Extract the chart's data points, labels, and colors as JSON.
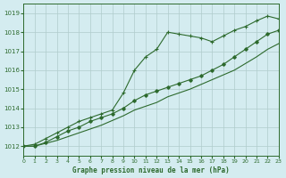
{
  "title": "Graphe pression niveau de la mer (hPa)",
  "bg_color": "#d4ecf0",
  "grid_color": "#b0cccc",
  "line_color": "#2d6a2d",
  "xmin": 0,
  "xmax": 23,
  "ymin": 1011.5,
  "ymax": 1019.5,
  "yticks": [
    1012,
    1013,
    1014,
    1015,
    1016,
    1017,
    1018,
    1019
  ],
  "xticks": [
    0,
    1,
    2,
    3,
    4,
    5,
    6,
    7,
    8,
    9,
    10,
    11,
    12,
    13,
    14,
    15,
    16,
    17,
    18,
    19,
    20,
    21,
    22,
    23
  ],
  "series1_x": [
    0,
    1,
    2,
    3,
    4,
    5,
    6,
    7,
    8,
    9,
    10,
    11,
    12,
    13,
    14,
    15,
    16,
    17,
    18,
    19,
    20,
    21,
    22,
    23
  ],
  "series1_y": [
    1012.0,
    1012.1,
    1012.4,
    1012.7,
    1013.0,
    1013.3,
    1013.5,
    1013.7,
    1013.9,
    1014.8,
    1016.0,
    1016.7,
    1017.1,
    1018.0,
    1017.9,
    1017.8,
    1017.7,
    1017.5,
    1017.8,
    1018.1,
    1018.3,
    1018.6,
    1018.85,
    1018.7
  ],
  "series2_x": [
    0,
    1,
    2,
    3,
    4,
    5,
    6,
    7,
    8,
    9,
    10,
    11,
    12,
    13,
    14,
    15,
    16,
    17,
    18,
    19,
    20,
    21,
    22,
    23
  ],
  "series2_y": [
    1012.0,
    1012.0,
    1012.2,
    1012.5,
    1012.8,
    1013.0,
    1013.3,
    1013.5,
    1013.7,
    1014.0,
    1014.4,
    1014.7,
    1014.9,
    1015.1,
    1015.3,
    1015.5,
    1015.7,
    1016.0,
    1016.3,
    1016.7,
    1017.1,
    1017.5,
    1017.9,
    1018.1
  ],
  "series3_x": [
    0,
    1,
    2,
    3,
    4,
    5,
    6,
    7,
    8,
    9,
    10,
    11,
    12,
    13,
    14,
    15,
    16,
    17,
    18,
    19,
    20,
    21,
    22,
    23
  ],
  "series3_y": [
    1012.0,
    1012.0,
    1012.15,
    1012.3,
    1012.5,
    1012.7,
    1012.9,
    1013.1,
    1013.35,
    1013.6,
    1013.9,
    1014.1,
    1014.3,
    1014.6,
    1014.8,
    1015.0,
    1015.25,
    1015.5,
    1015.75,
    1016.0,
    1016.35,
    1016.7,
    1017.1,
    1017.4
  ]
}
